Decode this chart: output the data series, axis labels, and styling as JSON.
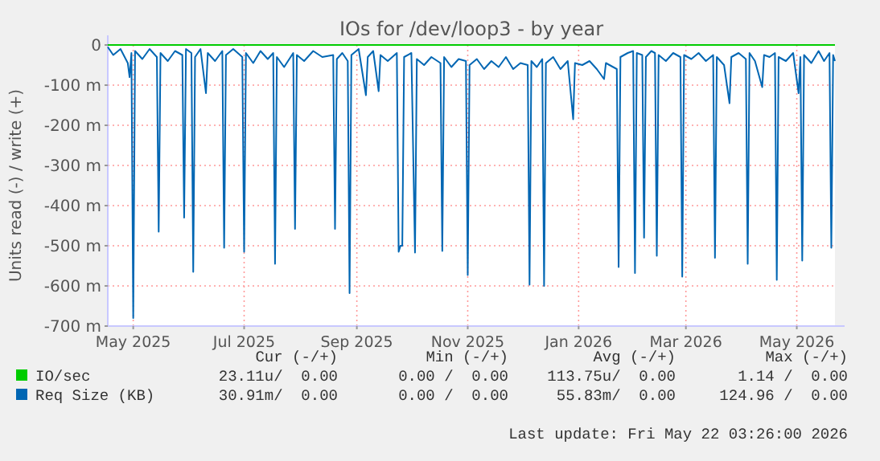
{
  "chart_data": {
    "type": "line",
    "title": "IOs for /dev/loop3 - by year",
    "ylabel": "Units read (-) / write (+)",
    "xlim": [
      "2025-04-17",
      "2026-05-22"
    ],
    "xticks": [
      {
        "value": "2025-05-01",
        "label": "May 2025"
      },
      {
        "value": "2025-07-01",
        "label": "Jul 2025"
      },
      {
        "value": "2025-09-01",
        "label": "Sep 2025"
      },
      {
        "value": "2025-11-01",
        "label": "Nov 2025"
      },
      {
        "value": "2026-01-01",
        "label": "Jan 2026"
      },
      {
        "value": "2026-03-01",
        "label": "Mar 2026"
      },
      {
        "value": "2026-05-01",
        "label": "May 2026"
      }
    ],
    "ylim": [
      -700,
      0
    ],
    "yticks": [
      {
        "value": -700,
        "label": "-700 m"
      },
      {
        "value": -600,
        "label": "-600 m"
      },
      {
        "value": -500,
        "label": "-500 m"
      },
      {
        "value": -400,
        "label": "-400 m"
      },
      {
        "value": -300,
        "label": "-300 m"
      },
      {
        "value": -200,
        "label": "-200 m"
      },
      {
        "value": -100,
        "label": "-100 m"
      },
      0
    ],
    "grid": true,
    "legend": "bottom left",
    "x": [
      "2025-04-17",
      "2025-04-20",
      "2025-04-24",
      "2025-04-28",
      "2025-04-29",
      "2025-04-30",
      "2025-05-01",
      "2025-05-02",
      "2025-05-06",
      "2025-05-10",
      "2025-05-14",
      "2025-05-15",
      "2025-05-16",
      "2025-05-20",
      "2025-05-24",
      "2025-05-28",
      "2025-05-29",
      "2025-05-30",
      "2025-06-02",
      "2025-06-03",
      "2025-06-04",
      "2025-06-07",
      "2025-06-10",
      "2025-06-11",
      "2025-06-15",
      "2025-06-19",
      "2025-06-20",
      "2025-06-21",
      "2025-06-25",
      "2025-06-30",
      "2025-07-01",
      "2025-07-02",
      "2025-07-06",
      "2025-07-10",
      "2025-07-14",
      "2025-07-17",
      "2025-07-18",
      "2025-07-19",
      "2025-07-23",
      "2025-07-28",
      "2025-07-29",
      "2025-07-30",
      "2025-08-03",
      "2025-08-08",
      "2025-08-13",
      "2025-08-19",
      "2025-08-20",
      "2025-08-21",
      "2025-08-24",
      "2025-08-27",
      "2025-08-28",
      "2025-08-29",
      "2025-09-02",
      "2025-09-06",
      "2025-09-07",
      "2025-09-10",
      "2025-09-13",
      "2025-09-14",
      "2025-09-18",
      "2025-09-23",
      "2025-09-24",
      "2025-09-25",
      "2025-09-26",
      "2025-09-27",
      "2025-10-01",
      "2025-10-03",
      "2025-10-04",
      "2025-10-08",
      "2025-10-12",
      "2025-10-17",
      "2025-10-18",
      "2025-10-19",
      "2025-10-23",
      "2025-10-27",
      "2025-10-31",
      "2025-11-01",
      "2025-11-02",
      "2025-11-06",
      "2025-11-10",
      "2025-11-14",
      "2025-11-18",
      "2025-11-22",
      "2025-11-26",
      "2025-11-30",
      "2025-12-04",
      "2025-12-05",
      "2025-12-06",
      "2025-12-09",
      "2025-12-12",
      "2025-12-13",
      "2025-12-14",
      "2025-12-18",
      "2025-12-22",
      "2025-12-26",
      "2025-12-29",
      "2025-12-30",
      "2026-01-03",
      "2026-01-07",
      "2026-01-11",
      "2026-01-15",
      "2026-01-16",
      "2026-01-20",
      "2026-01-22",
      "2026-01-23",
      "2026-01-24",
      "2026-01-28",
      "2026-01-31",
      "2026-02-01",
      "2026-02-02",
      "2026-02-05",
      "2026-02-06",
      "2026-02-07",
      "2026-02-10",
      "2026-02-12",
      "2026-02-13",
      "2026-02-14",
      "2026-02-18",
      "2026-02-22",
      "2026-02-26",
      "2026-02-27",
      "2026-02-28",
      "2026-03-04",
      "2026-03-08",
      "2026-03-12",
      "2026-03-16",
      "2026-03-17",
      "2026-03-18",
      "2026-03-22",
      "2026-03-25",
      "2026-03-26",
      "2026-03-30",
      "2026-04-03",
      "2026-04-04",
      "2026-04-05",
      "2026-04-08",
      "2026-04-12",
      "2026-04-13",
      "2026-04-16",
      "2026-04-19",
      "2026-04-20",
      "2026-04-21",
      "2026-04-25",
      "2026-04-29",
      "2026-05-02",
      "2026-05-03",
      "2026-05-04",
      "2026-05-05",
      "2026-05-09",
      "2026-05-13",
      "2026-05-16",
      "2026-05-19",
      "2026-05-20",
      "2026-05-21",
      "2026-05-22"
    ],
    "series": [
      {
        "name": "IO/sec",
        "color": "#00cc00",
        "x": [
          "2025-04-17",
          "2026-05-22"
        ],
        "values": [
          0,
          0
        ]
      },
      {
        "name": "Req Size (KB)",
        "color": "#0066b3",
        "values": [
          -5,
          -25,
          -10,
          -45,
          -80,
          -20,
          -680,
          -15,
          -35,
          -10,
          -30,
          -465,
          -20,
          -40,
          -15,
          -25,
          -430,
          -10,
          -20,
          -565,
          -30,
          -10,
          -120,
          -20,
          -40,
          -15,
          -505,
          -25,
          -10,
          -30,
          -515,
          -20,
          -45,
          -15,
          -35,
          -20,
          -545,
          -30,
          -55,
          -20,
          -458,
          -25,
          -40,
          -15,
          -30,
          -25,
          -458,
          -35,
          -20,
          -40,
          -618,
          -25,
          -10,
          -125,
          -30,
          -15,
          -115,
          -25,
          -40,
          -20,
          -515,
          -500,
          -500,
          -30,
          -20,
          -517,
          -35,
          -50,
          -30,
          -45,
          -513,
          -30,
          -55,
          -35,
          -40,
          -573,
          -50,
          -35,
          -60,
          -40,
          -55,
          -30,
          -60,
          -45,
          -50,
          -597,
          -40,
          -55,
          -35,
          -600,
          -45,
          -30,
          -60,
          -40,
          -185,
          -45,
          -50,
          -40,
          -60,
          -85,
          -45,
          -55,
          -60,
          -553,
          -30,
          -20,
          -15,
          -568,
          -20,
          -25,
          -480,
          -30,
          -15,
          -20,
          -525,
          -25,
          -40,
          -20,
          -30,
          -577,
          -25,
          -35,
          -20,
          -40,
          -25,
          -530,
          -30,
          -50,
          -145,
          -30,
          -20,
          -35,
          -545,
          -20,
          -40,
          -105,
          -25,
          -30,
          -20,
          -585,
          -30,
          -40,
          -20,
          -120,
          -30,
          -537,
          -25,
          -45,
          -15,
          -40,
          -20,
          -505,
          -25,
          -40
        ]
      }
    ],
    "annotations": [
      "Cur (-/+)",
      "Min (-/+)",
      "Avg (-/+)",
      "Max (-/+)",
      "23.11u/  0.00",
      "0.00 /  0.00",
      "113.75u/  0.00",
      "1.14 /  0.00",
      "30.91m/  0.00",
      "0.00 /  0.00",
      "55.83m/  0.00",
      "124.96 /  0.00",
      "Last update: Fri May 22 03:26:00 2026"
    ]
  }
}
